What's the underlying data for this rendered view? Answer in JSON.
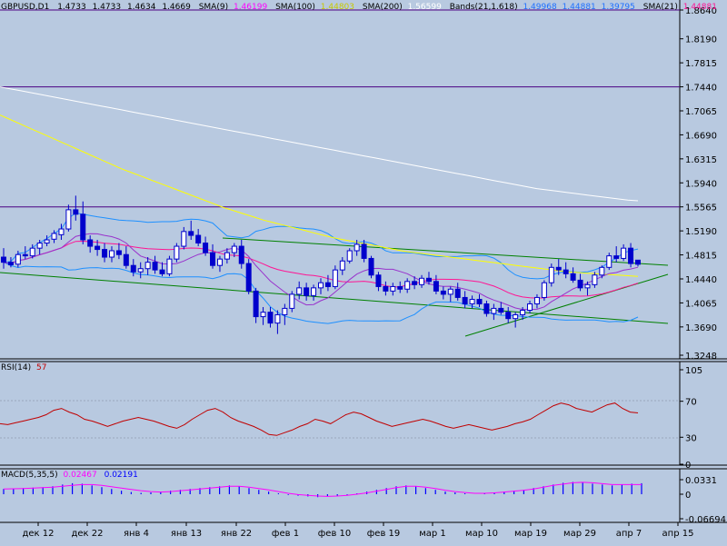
{
  "header": {
    "symbol": "GBPUSD,D1",
    "open": "1.4733",
    "high": "1.4733",
    "low": "1.4634",
    "close": "1.4669",
    "sma9_label": "SMA(9)",
    "sma9_value": "1.46199",
    "sma100_label": "SMA(100)",
    "sma100_value": "1.44803",
    "sma200_label": "SMA(200)",
    "sma200_value": "1.56599",
    "bands_label": "Bands(21,1.618)",
    "bands_upper": "1.49968",
    "bands_mid": "1.44881",
    "bands_lower": "1.39795",
    "sma21_label": "SMA(21)",
    "sma21_value": "1.44881"
  },
  "rsi_header": {
    "label": "RSI(14)",
    "value": "57"
  },
  "macd_header": {
    "label": "MACD(5,35,5)",
    "value1": "0.02467",
    "value2": "0.02191"
  },
  "colors": {
    "background": "#b8c9e0",
    "sma9": "#ff00ff",
    "sma100": "#ffff00",
    "sma200": "#ffffff",
    "bands": "#1e90ff",
    "sma21": "#ff1493",
    "candle": "#0000cc",
    "trendline": "#008000",
    "hline": "#4b0082",
    "rsi": "#c00000",
    "macd_hist": "#0000ff",
    "macd_signal": "#ff00ff"
  },
  "chart_data": [
    {
      "type": "candlestick",
      "title": "GBPUSD,D1",
      "ylim": [
        1.3248,
        1.864
      ],
      "y_ticks": [
        "1.8640",
        "1.8190",
        "1.7815",
        "1.7440",
        "1.7065",
        "1.6690",
        "1.6315",
        "1.5940",
        "1.5565",
        "1.5190",
        "1.4815",
        "1.4440",
        "1.4065",
        "1.3690",
        "1.3248"
      ],
      "x_ticks": [
        "дек 12",
        "дек 22",
        "янв 4",
        "янв 13",
        "янв 22",
        "фев 1",
        "фев 10",
        "фев 19",
        "мар 1",
        "мар 10",
        "мар 19",
        "мар 29",
        "апр 7",
        "апр 15"
      ],
      "horizontal_lines": [
        1.864,
        1.744,
        1.5565
      ],
      "candles": [
        [
          1.478,
          1.492,
          1.46,
          1.47
        ],
        [
          1.47,
          1.478,
          1.462,
          1.466
        ],
        [
          1.467,
          1.488,
          1.462,
          1.482
        ],
        [
          1.482,
          1.495,
          1.475,
          1.48
        ],
        [
          1.48,
          1.498,
          1.476,
          1.492
        ],
        [
          1.492,
          1.505,
          1.482,
          1.5
        ],
        [
          1.5,
          1.512,
          1.495,
          1.505
        ],
        [
          1.506,
          1.52,
          1.5,
          1.515
        ],
        [
          1.513,
          1.53,
          1.505,
          1.522
        ],
        [
          1.522,
          1.56,
          1.518,
          1.552
        ],
        [
          1.552,
          1.574,
          1.535,
          1.545
        ],
        [
          1.545,
          1.565,
          1.498,
          1.505
        ],
        [
          1.505,
          1.512,
          1.485,
          1.495
        ],
        [
          1.495,
          1.505,
          1.48,
          1.49
        ],
        [
          1.49,
          1.5,
          1.47,
          1.478
        ],
        [
          1.478,
          1.495,
          1.47,
          1.488
        ],
        [
          1.488,
          1.5,
          1.475,
          1.482
        ],
        [
          1.482,
          1.495,
          1.46,
          1.465
        ],
        [
          1.465,
          1.475,
          1.448,
          1.455
        ],
        [
          1.455,
          1.47,
          1.445,
          1.46
        ],
        [
          1.46,
          1.478,
          1.45,
          1.47
        ],
        [
          1.47,
          1.48,
          1.452,
          1.458
        ],
        [
          1.458,
          1.47,
          1.448,
          1.452
        ],
        [
          1.452,
          1.48,
          1.448,
          1.475
        ],
        [
          1.475,
          1.5,
          1.47,
          1.495
        ],
        [
          1.495,
          1.525,
          1.49,
          1.518
        ],
        [
          1.518,
          1.535,
          1.505,
          1.512
        ],
        [
          1.512,
          1.522,
          1.495,
          1.5
        ],
        [
          1.5,
          1.51,
          1.48,
          1.485
        ],
        [
          1.485,
          1.498,
          1.46,
          1.465
        ],
        [
          1.465,
          1.48,
          1.455,
          1.475
        ],
        [
          1.475,
          1.492,
          1.468,
          1.485
        ],
        [
          1.485,
          1.5,
          1.478,
          1.495
        ],
        [
          1.495,
          1.505,
          1.46,
          1.468
        ],
        [
          1.468,
          1.475,
          1.42,
          1.425
        ],
        [
          1.425,
          1.43,
          1.375,
          1.385
        ],
        [
          1.385,
          1.4,
          1.372,
          1.392
        ],
        [
          1.392,
          1.4,
          1.368,
          1.375
        ],
        [
          1.375,
          1.395,
          1.358,
          1.388
        ],
        [
          1.388,
          1.405,
          1.372,
          1.398
        ],
        [
          1.398,
          1.425,
          1.392,
          1.42
        ],
        [
          1.42,
          1.44,
          1.412,
          1.43
        ],
        [
          1.43,
          1.438,
          1.41,
          1.418
        ],
        [
          1.418,
          1.435,
          1.41,
          1.43
        ],
        [
          1.43,
          1.445,
          1.42,
          1.438
        ],
        [
          1.438,
          1.45,
          1.425,
          1.432
        ],
        [
          1.432,
          1.465,
          1.428,
          1.458
        ],
        [
          1.458,
          1.478,
          1.45,
          1.472
        ],
        [
          1.472,
          1.492,
          1.468,
          1.488
        ],
        [
          1.488,
          1.505,
          1.48,
          1.498
        ],
        [
          1.498,
          1.505,
          1.47,
          1.476
        ],
        [
          1.476,
          1.48,
          1.445,
          1.45
        ],
        [
          1.45,
          1.455,
          1.425,
          1.432
        ],
        [
          1.432,
          1.44,
          1.418,
          1.425
        ],
        [
          1.425,
          1.438,
          1.418,
          1.432
        ],
        [
          1.432,
          1.44,
          1.422,
          1.428
        ],
        [
          1.428,
          1.445,
          1.422,
          1.44
        ],
        [
          1.44,
          1.448,
          1.428,
          1.435
        ],
        [
          1.435,
          1.45,
          1.43,
          1.445
        ],
        [
          1.445,
          1.455,
          1.435,
          1.44
        ],
        [
          1.44,
          1.45,
          1.42,
          1.425
        ],
        [
          1.425,
          1.432,
          1.412,
          1.42
        ],
        [
          1.42,
          1.432,
          1.408,
          1.428
        ],
        [
          1.428,
          1.438,
          1.41,
          1.415
        ],
        [
          1.415,
          1.425,
          1.398,
          1.405
        ],
        [
          1.405,
          1.418,
          1.398,
          1.412
        ],
        [
          1.412,
          1.42,
          1.4,
          1.405
        ],
        [
          1.405,
          1.41,
          1.385,
          1.39
        ],
        [
          1.39,
          1.405,
          1.38,
          1.398
        ],
        [
          1.398,
          1.408,
          1.388,
          1.392
        ],
        [
          1.392,
          1.4,
          1.375,
          1.382
        ],
        [
          1.382,
          1.392,
          1.368,
          1.388
        ],
        [
          1.388,
          1.4,
          1.38,
          1.395
        ],
        [
          1.395,
          1.41,
          1.39,
          1.405
        ],
        [
          1.405,
          1.42,
          1.398,
          1.415
        ],
        [
          1.415,
          1.442,
          1.41,
          1.438
        ],
        [
          1.438,
          1.468,
          1.432,
          1.462
        ],
        [
          1.462,
          1.475,
          1.45,
          1.458
        ],
        [
          1.458,
          1.47,
          1.445,
          1.452
        ],
        [
          1.452,
          1.462,
          1.438,
          1.442
        ],
        [
          1.442,
          1.452,
          1.425,
          1.43
        ],
        [
          1.43,
          1.44,
          1.418,
          1.435
        ],
        [
          1.435,
          1.455,
          1.43,
          1.45
        ],
        [
          1.45,
          1.465,
          1.445,
          1.462
        ],
        [
          1.462,
          1.485,
          1.458,
          1.48
        ],
        [
          1.48,
          1.495,
          1.47,
          1.476
        ],
        [
          1.476,
          1.498,
          1.472,
          1.492
        ],
        [
          1.492,
          1.5,
          1.462,
          1.468
        ],
        [
          1.4733,
          1.4733,
          1.4634,
          1.4669
        ]
      ],
      "series": [
        {
          "name": "SMA(200)",
          "values": [
            1.744,
            1.741,
            1.738,
            1.735,
            1.732,
            1.729,
            1.726,
            1.723,
            1.72,
            1.717,
            1.714,
            1.711,
            1.708,
            1.705,
            1.702,
            1.699,
            1.696,
            1.693,
            1.69,
            1.687,
            1.684,
            1.681,
            1.678,
            1.675,
            1.672,
            1.669,
            1.666,
            1.663,
            1.66,
            1.657,
            1.654,
            1.651,
            1.648,
            1.645,
            1.642,
            1.639,
            1.636,
            1.633,
            1.63,
            1.627,
            1.624,
            1.621,
            1.618,
            1.615,
            1.612,
            1.609,
            1.606,
            1.603,
            1.6,
            1.597,
            1.594,
            1.591,
            1.588,
            1.585,
            1.583,
            1.581,
            1.579,
            1.577,
            1.575,
            1.573,
            1.571,
            1.569,
            1.567,
            1.566
          ]
        },
        {
          "name": "SMA(100)",
          "values": [
            1.7,
            1.693,
            1.686,
            1.679,
            1.672,
            1.665,
            1.658,
            1.651,
            1.644,
            1.637,
            1.63,
            1.623,
            1.616,
            1.61,
            1.604,
            1.598,
            1.592,
            1.586,
            1.58,
            1.574,
            1.568,
            1.562,
            1.556,
            1.551,
            1.546,
            1.541,
            1.536,
            1.532,
            1.528,
            1.524,
            1.52,
            1.516,
            1.512,
            1.508,
            1.505,
            1.502,
            1.499,
            1.496,
            1.493,
            1.49,
            1.487,
            1.485,
            1.483,
            1.481,
            1.479,
            1.477,
            1.475,
            1.473,
            1.471,
            1.469,
            1.467,
            1.465,
            1.463,
            1.461,
            1.459,
            1.457,
            1.455,
            1.454,
            1.453,
            1.452,
            1.451,
            1.45,
            1.449,
            1.448
          ]
        }
      ]
    },
    {
      "type": "line",
      "title": "RSI(14)",
      "ylim": [
        0,
        105
      ],
      "y_ticks": [
        "105",
        "70",
        "30",
        "0"
      ],
      "series": [
        {
          "name": "RSI(14)",
          "values": [
            45,
            44,
            46,
            48,
            50,
            52,
            55,
            60,
            62,
            58,
            55,
            50,
            48,
            45,
            42,
            45,
            48,
            50,
            52,
            50,
            48,
            45,
            42,
            40,
            44,
            50,
            55,
            60,
            62,
            58,
            52,
            48,
            45,
            42,
            38,
            33,
            32,
            35,
            38,
            42,
            45,
            50,
            48,
            45,
            50,
            55,
            58,
            56,
            52,
            48,
            45,
            42,
            44,
            46,
            48,
            50,
            48,
            45,
            42,
            40,
            42,
            44,
            42,
            40,
            38,
            40,
            42,
            45,
            47,
            50,
            55,
            60,
            65,
            68,
            66,
            62,
            60,
            58,
            62,
            66,
            68,
            62,
            58,
            57
          ]
        }
      ]
    },
    {
      "type": "bar",
      "title": "MACD(5,35,5)",
      "y_ticks": [
        "0.0331",
        "0",
        "-0.06694"
      ],
      "series": [
        {
          "name": "MACD(5,35,5)",
          "values": [
            0.012,
            0.013,
            0.014,
            0.015,
            0.016,
            0.018,
            0.022,
            0.025,
            0.024,
            0.02,
            0.016,
            0.012,
            0.008,
            0.005,
            0.003,
            0.004,
            0.006,
            0.008,
            0.01,
            0.012,
            0.014,
            0.016,
            0.018,
            0.02,
            0.018,
            0.014,
            0.01,
            0.006,
            0.002,
            -0.002,
            -0.004,
            -0.006,
            -0.008,
            -0.006,
            -0.004,
            -0.002,
            0.002,
            0.006,
            0.01,
            0.014,
            0.018,
            0.02,
            0.018,
            0.014,
            0.01,
            0.006,
            0.004,
            0.002,
            0.0,
            0.002,
            0.004,
            0.006,
            0.008,
            0.01,
            0.014,
            0.018,
            0.022,
            0.026,
            0.028,
            0.027,
            0.024,
            0.022,
            0.02,
            0.022,
            0.024,
            0.025
          ]
        },
        {
          "name": "0.02191",
          "values": [
            0.012,
            0.0125,
            0.013,
            0.014,
            0.015,
            0.016,
            0.018,
            0.02,
            0.022,
            0.022,
            0.02,
            0.017,
            0.014,
            0.011,
            0.008,
            0.006,
            0.005,
            0.006,
            0.008,
            0.01,
            0.012,
            0.014,
            0.016,
            0.018,
            0.018,
            0.016,
            0.013,
            0.01,
            0.006,
            0.002,
            -0.001,
            -0.003,
            -0.005,
            -0.006,
            -0.005,
            -0.003,
            0.0,
            0.003,
            0.007,
            0.011,
            0.015,
            0.018,
            0.018,
            0.016,
            0.013,
            0.009,
            0.006,
            0.004,
            0.002,
            0.002,
            0.003,
            0.005,
            0.007,
            0.009,
            0.012,
            0.016,
            0.02,
            0.023,
            0.026,
            0.027,
            0.026,
            0.024,
            0.022,
            0.022,
            0.022,
            0.022
          ]
        }
      ]
    }
  ]
}
